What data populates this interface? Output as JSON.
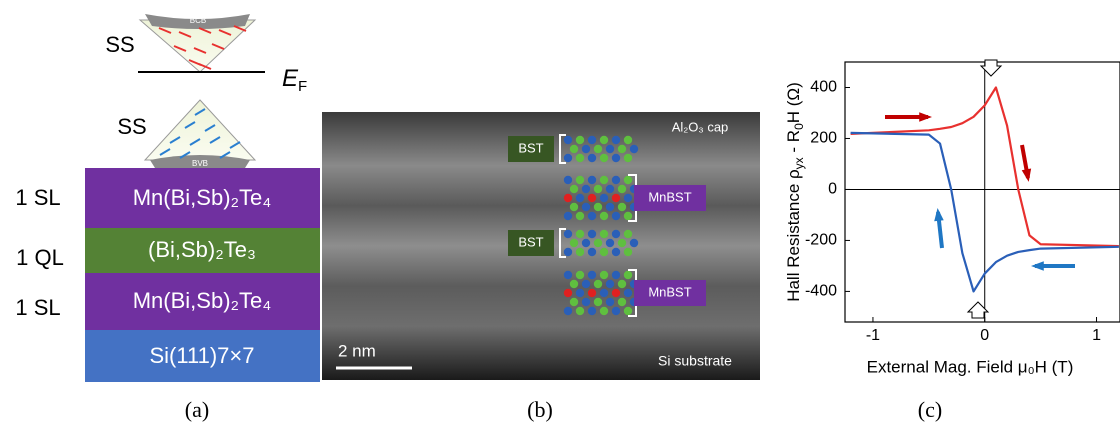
{
  "panel_a": {
    "cone_top": {
      "band": "BCB",
      "state": "SS",
      "level": "E",
      "level_sub": "F"
    },
    "cone_bottom": {
      "band": "BVB",
      "state": "SS"
    },
    "layers": [
      {
        "count": "1 SL",
        "material": "Mn(Bi,Sb)₂Te₄"
      },
      {
        "count": "1 QL",
        "material": "(Bi,Sb)₂Te₃"
      },
      {
        "count": "1 SL",
        "material": "Mn(Bi,Sb)₂Te₄"
      },
      {
        "material": "Si(111)7×7"
      }
    ],
    "caption": "(a)"
  },
  "panel_b": {
    "cap": "Al₂O₃ cap",
    "substrate": "Si substrate",
    "scale": "2 nm",
    "blocks": [
      "BST",
      "MnBST",
      "BST",
      "MnBST"
    ],
    "caption": "(b)"
  },
  "chart_data": {
    "type": "line",
    "y_label": [
      "Hall Resistance ρ",
      "yx",
      " - R",
      "0",
      "H (Ω)"
    ],
    "x_label": "External Mag. Field  μ₀H (T)",
    "x": [
      -1.2,
      -0.5,
      -0.4,
      -0.3,
      -0.2,
      -0.1,
      0,
      0.1,
      0.2,
      0.3,
      0.4,
      0.5,
      1.2
    ],
    "series": [
      {
        "color": "#e8312f",
        "values": [
          218,
          232,
          238,
          245,
          260,
          285,
          330,
          400,
          250,
          0,
          -180,
          -215,
          -222
        ]
      },
      {
        "color": "#2a5fb8",
        "values": [
          222,
          215,
          180,
          0,
          -250,
          -400,
          -330,
          -285,
          -260,
          -245,
          -238,
          -232,
          -225
        ]
      }
    ],
    "xlim": [
      -1.25,
      1.21
    ],
    "ylim": [
      -520,
      500
    ],
    "xticks": [
      -1,
      0,
      1
    ],
    "yticks": [
      -400,
      -200,
      0,
      200,
      400
    ],
    "caption": "(c)"
  }
}
